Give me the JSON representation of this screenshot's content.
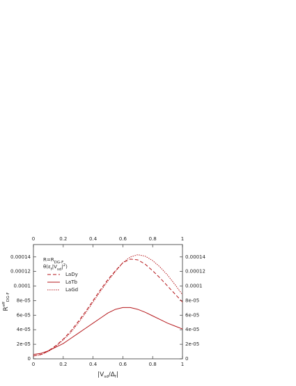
{
  "chart_data": {
    "type": "line",
    "x_label": [
      {
        "t": "|V"
      },
      {
        "t": "sd",
        "sub": true
      },
      {
        "t": "/Δ"
      },
      {
        "t": "f",
        "sub": true
      },
      {
        "t": "|"
      }
    ],
    "y_label": [
      {
        "t": "R"
      },
      {
        "t": "eff",
        "sup": true
      },
      {
        "t": "DG-F",
        "sub": true
      }
    ],
    "annotation_lines": [
      [
        {
          "t": "R=R"
        },
        {
          "t": "DG-F",
          "sub": true
        }
      ],
      [
        {
          "t": "θ(ε"
        },
        {
          "t": "f",
          "sub": true
        },
        {
          "t": "|V"
        },
        {
          "t": "sd",
          "sub": true
        },
        {
          "t": "|"
        },
        {
          "t": "2",
          "sup": true
        },
        {
          "t": ")"
        }
      ]
    ],
    "x": [
      0,
      0.05,
      0.1,
      0.15,
      0.2,
      0.25,
      0.3,
      0.35,
      0.4,
      0.45,
      0.5,
      0.55,
      0.6,
      0.65,
      0.7,
      0.75,
      0.8,
      0.85,
      0.9,
      0.95,
      1
    ],
    "series": [
      {
        "name": "LaDy",
        "color": "#b5171b",
        "dash": "5,3",
        "values": [
          4e-06,
          6e-06,
          1.1e-05,
          1.8e-05,
          2.7e-05,
          3.8e-05,
          5.1e-05,
          6.5e-05,
          8e-05,
          9.5e-05,
          0.000109,
          0.000121,
          0.000132,
          0.000137,
          0.000136,
          0.00013,
          0.000121,
          0.000111,
          0.0001,
          8.9e-05,
          7.8e-05
        ]
      },
      {
        "name": "LaTb",
        "color": "#b5171b",
        "dash": "none",
        "values": [
          6e-06,
          7.5e-06,
          1.1e-05,
          1.6e-05,
          2.1e-05,
          2.8e-05,
          3.5e-05,
          4.2e-05,
          4.9e-05,
          5.6e-05,
          6.3e-05,
          6.8e-05,
          7.05e-05,
          7.05e-05,
          6.8e-05,
          6.4e-05,
          5.9e-05,
          5.4e-05,
          4.9e-05,
          4.5e-05,
          4.1e-05
        ]
      },
      {
        "name": "LaGd",
        "color": "#b5171b",
        "dash": "1.5,1.5",
        "values": [
          4e-06,
          5.5e-06,
          1e-05,
          1.7e-05,
          2.6e-05,
          3.6e-05,
          4.9e-05,
          6.3e-05,
          7.8e-05,
          9.3e-05,
          0.000107,
          0.00012,
          0.000132,
          0.00014,
          0.000143,
          0.000141,
          0.000135,
          0.000126,
          0.000115,
          0.000102,
          8.8e-05
        ]
      }
    ],
    "xlim": [
      0,
      1
    ],
    "xticks": [
      0,
      0.2,
      0.4,
      0.6,
      0.8,
      1
    ],
    "ylim": [
      0,
      0.000157
    ],
    "yticks": [
      0,
      {
        "value": 2e-05,
        "label": "2e-05"
      },
      {
        "value": 4e-05,
        "label": "4e-05"
      },
      {
        "value": 6e-05,
        "label": "6e-05"
      },
      {
        "value": 8e-05,
        "label": "8e-05"
      },
      0.0001,
      0.00012,
      0.00014
    ],
    "mirror_axes": true
  }
}
